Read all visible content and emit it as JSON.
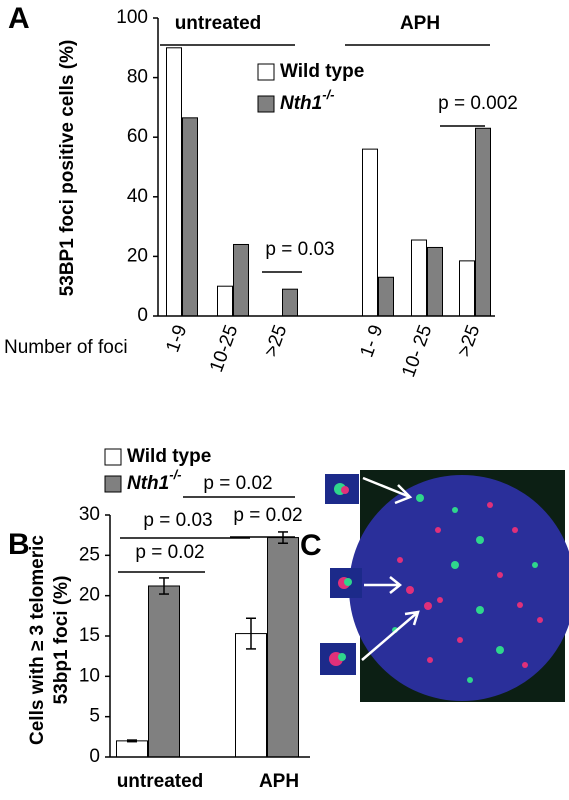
{
  "chart_data": [
    {
      "type": "bar",
      "panel": "A",
      "ylabel": "53BP1 foci positive cells (%)",
      "xlabel": "Number of foci",
      "group_labels": [
        "untreated",
        "APH"
      ],
      "categories": [
        "1-9",
        "10-25",
        ">25",
        "1- 9",
        "10- 25",
        ">25"
      ],
      "series": [
        {
          "name": "Wild type",
          "color": "#ffffff",
          "values": [
            90,
            10,
            0,
            56,
            25.5,
            18.5
          ]
        },
        {
          "name": "Nth1",
          "superscript": "-/-",
          "color": "#808080",
          "values": [
            66.5,
            24,
            9,
            13,
            23,
            63
          ]
        }
      ],
      "ylim": [
        0,
        100
      ],
      "yticks": [
        0,
        20,
        40,
        60,
        80,
        100
      ],
      "annotations": [
        "p = 0.03",
        "p = 0.002"
      ]
    },
    {
      "type": "bar",
      "panel": "B",
      "ylabel": [
        "Cells with ≥ 3 telomeric",
        "53bp1 foci (%)"
      ],
      "categories": [
        "untreated",
        "APH"
      ],
      "series": [
        {
          "name": "Wild type",
          "color": "#ffffff",
          "values": [
            2,
            15.3
          ],
          "errors": [
            0.1,
            1.9
          ]
        },
        {
          "name": "Nth1",
          "superscript": "-/-",
          "color": "#808080",
          "values": [
            21.2,
            27.2
          ],
          "errors": [
            1.0,
            0.7
          ]
        }
      ],
      "ylim": [
        0,
        30
      ],
      "yticks": [
        0,
        5,
        10,
        15,
        20,
        25,
        30
      ],
      "annotations": [
        "p = 0.02",
        "p = 0.03",
        "p = 0.02",
        "p = 0.02"
      ]
    }
  ],
  "image_panel": {
    "label": "C"
  }
}
